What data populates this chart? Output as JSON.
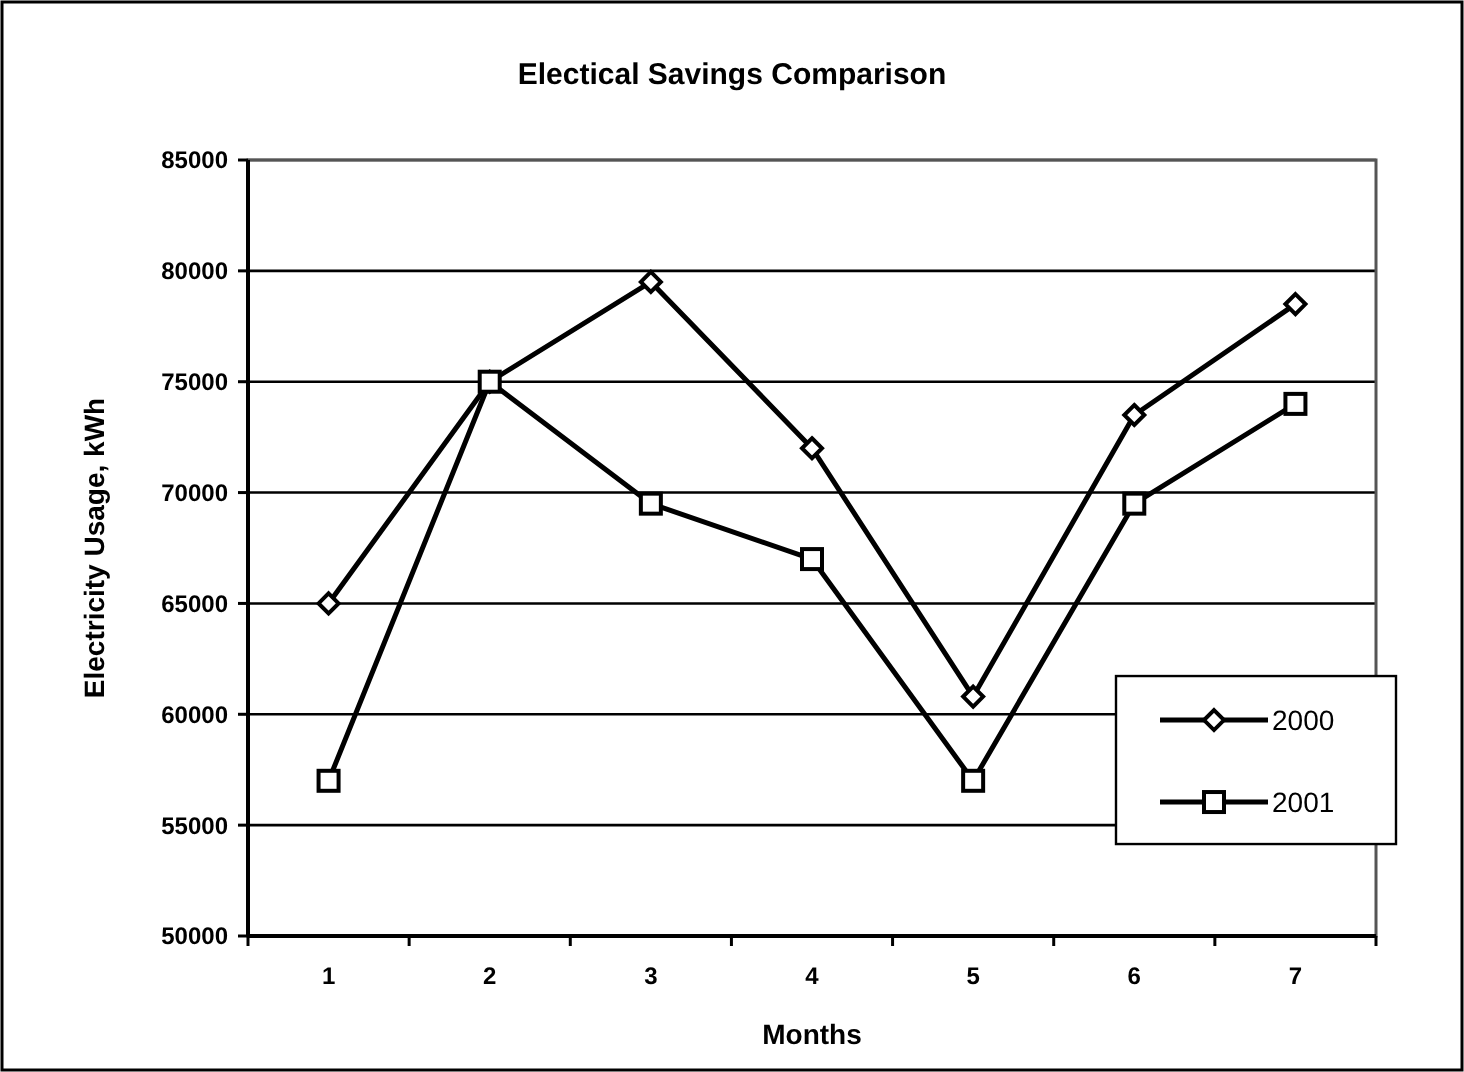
{
  "chart_data": {
    "type": "line",
    "title": "Electical Savings Comparison",
    "xlabel": "Months",
    "ylabel": "Electricity Usage, kWh",
    "categories": [
      "1",
      "2",
      "3",
      "4",
      "5",
      "6",
      "7"
    ],
    "series": [
      {
        "name": "2000",
        "color": "#000000",
        "marker": "diamond",
        "values": [
          65000,
          75000,
          79500,
          72000,
          60800,
          73500,
          78500
        ]
      },
      {
        "name": "2001",
        "color": "#000000",
        "marker": "square",
        "values": [
          57000,
          75000,
          69500,
          67000,
          57000,
          69500,
          74000
        ]
      }
    ],
    "ylim": [
      50000,
      85000
    ],
    "yticks": [
      50000,
      55000,
      60000,
      65000,
      70000,
      75000,
      80000,
      85000
    ],
    "grid": "y",
    "legend": "right",
    "line_style": "solid"
  }
}
